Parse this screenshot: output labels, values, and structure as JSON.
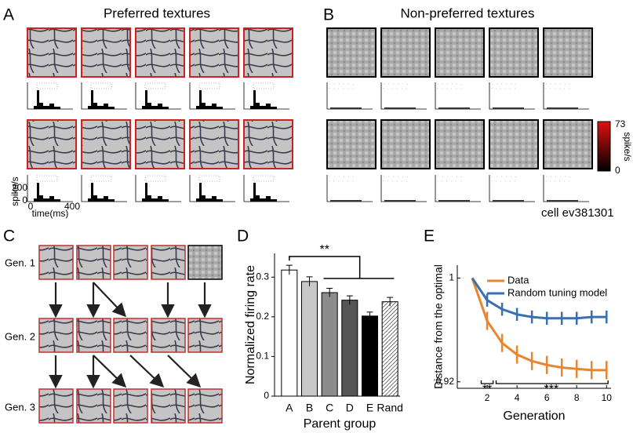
{
  "panel_labels": [
    "A",
    "B",
    "C",
    "D",
    "E"
  ],
  "panel_a": {
    "title": "Preferred textures",
    "psth_ylabel": "spike/s",
    "psth_yticks": [
      200,
      0
    ],
    "psth_xticks": [
      0,
      400
    ],
    "psth_xlabel": "time(ms)"
  },
  "panel_b": {
    "title": "Non-preferred textures",
    "colorbar": {
      "max": 73,
      "min": 0,
      "label": "spike/s"
    },
    "cell_label": "cell ev381301"
  },
  "panel_c": {
    "generations": [
      "Gen. 1",
      "Gen. 2",
      "Gen. 3"
    ]
  },
  "chart_data": [
    {
      "type": "bar",
      "ylabel": "Normalized firing rate",
      "xlabel": "Parent group",
      "categories": [
        "A",
        "B",
        "C",
        "D",
        "E",
        "Rand"
      ],
      "values": [
        0.318,
        0.289,
        0.261,
        0.242,
        0.202,
        0.238
      ],
      "errors": [
        0.012,
        0.012,
        0.011,
        0.011,
        0.01,
        0.011
      ],
      "colors": [
        "#ffffff",
        "#c8c8c8",
        "#8c8c8c",
        "#555555",
        "#000000",
        "#ffffff"
      ],
      "hatch": [
        false,
        false,
        false,
        false,
        false,
        true
      ],
      "ylim": [
        0,
        0.36
      ],
      "yticks": [
        0,
        0.1,
        0.2,
        0.3
      ],
      "annotation": "**"
    },
    {
      "type": "line",
      "xlabel": "Generation",
      "ylabel": "Distance from the optimal",
      "x": [
        1,
        2,
        3,
        4,
        5,
        6,
        7,
        8,
        9,
        10
      ],
      "series": [
        {
          "name": "Data",
          "color": "#e8852f",
          "values": [
            1.0,
            0.967,
            0.95,
            0.941,
            0.936,
            0.933,
            0.931,
            0.93,
            0.929,
            0.929
          ],
          "errors": [
            0,
            0.007,
            0.007,
            0.007,
            0.007,
            0.007,
            0.007,
            0.007,
            0.007,
            0.007
          ]
        },
        {
          "name": "Random tuning model",
          "color": "#3a6fb0",
          "values": [
            1.0,
            0.983,
            0.976,
            0.972,
            0.97,
            0.969,
            0.969,
            0.969,
            0.97,
            0.97
          ],
          "errors": [
            0,
            0.005,
            0.005,
            0.005,
            0.005,
            0.005,
            0.005,
            0.005,
            0.005,
            0.005
          ]
        }
      ],
      "xlim": [
        0,
        10.3
      ],
      "xticks": [
        2,
        4,
        6,
        8,
        10
      ],
      "ylim": [
        0.915,
        1.01
      ],
      "yticks": [
        0.92,
        1
      ],
      "annotations": [
        "**",
        "***"
      ],
      "legend": "upper right"
    }
  ]
}
